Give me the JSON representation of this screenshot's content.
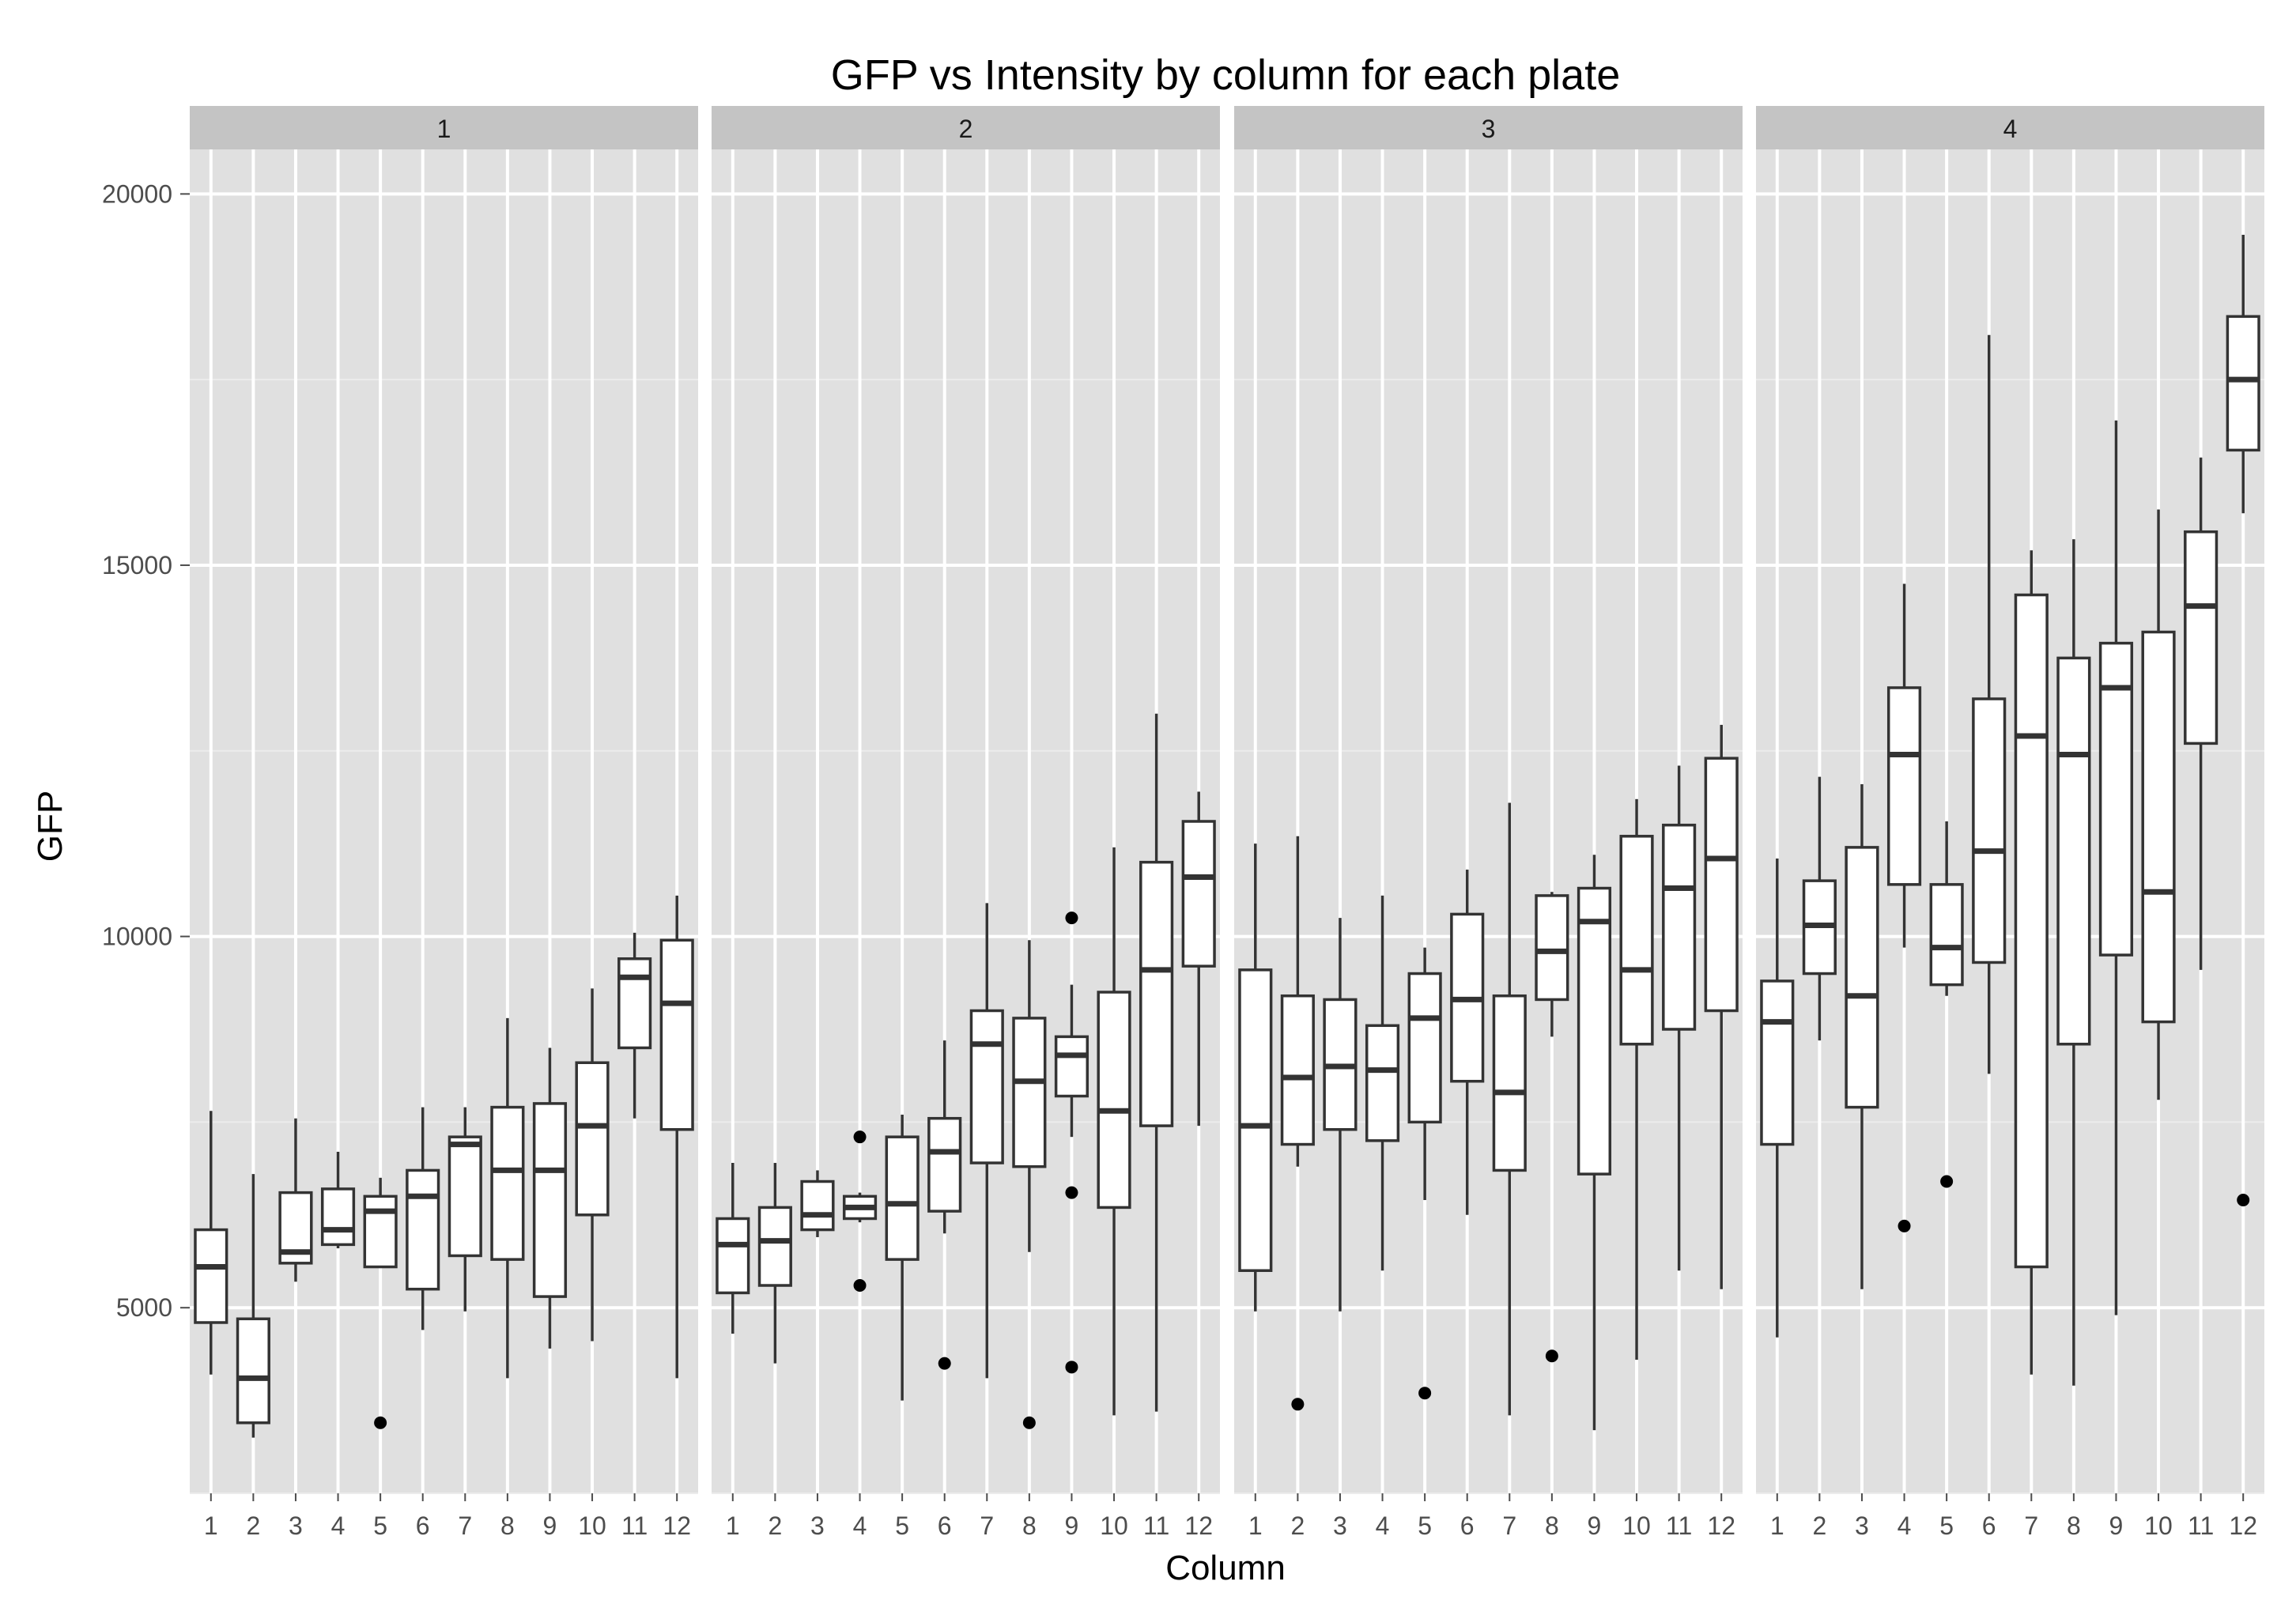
{
  "chart_data": {
    "type": "boxplot",
    "title": "GFP vs Intensity by column for each plate",
    "xlabel": "Column",
    "ylabel": "GFP",
    "ylim": [
      2500,
      20600
    ],
    "yticks": [
      5000,
      10000,
      15000,
      20000
    ],
    "categories": [
      "1",
      "2",
      "3",
      "4",
      "5",
      "6",
      "7",
      "8",
      "9",
      "10",
      "11",
      "12"
    ],
    "grid": true,
    "legend": "none",
    "colors": {
      "panel_bg": "#e0e0e0",
      "strip_bg": "#c4c4c4",
      "grid_major": "#ffffff",
      "grid_minor": "#ececec",
      "box_fill": "#ffffff",
      "box_line": "#333333"
    },
    "panels": [
      {
        "label": "1",
        "boxes": [
          {
            "q1": 4800,
            "median": 5550,
            "q3": 6050,
            "lower": 4100,
            "upper": 7650,
            "outliers": []
          },
          {
            "q1": 3450,
            "median": 4050,
            "q3": 4850,
            "lower": 3250,
            "upper": 6800,
            "outliers": []
          },
          {
            "q1": 5600,
            "median": 5750,
            "q3": 6550,
            "lower": 5350,
            "upper": 7550,
            "outliers": []
          },
          {
            "q1": 5850,
            "median": 6050,
            "q3": 6600,
            "lower": 5800,
            "upper": 7100,
            "outliers": []
          },
          {
            "q1": 5550,
            "median": 6300,
            "q3": 6500,
            "lower": 5550,
            "upper": 6750,
            "outliers": [
              3450
            ]
          },
          {
            "q1": 5250,
            "median": 6500,
            "q3": 6850,
            "lower": 4700,
            "upper": 7700,
            "outliers": []
          },
          {
            "q1": 5700,
            "median": 7200,
            "q3": 7300,
            "lower": 4950,
            "upper": 7700,
            "outliers": []
          },
          {
            "q1": 5650,
            "median": 6850,
            "q3": 7700,
            "lower": 4050,
            "upper": 8900,
            "outliers": []
          },
          {
            "q1": 5150,
            "median": 6850,
            "q3": 7750,
            "lower": 4450,
            "upper": 8500,
            "outliers": []
          },
          {
            "q1": 6250,
            "median": 7450,
            "q3": 8300,
            "lower": 4550,
            "upper": 9300,
            "outliers": []
          },
          {
            "q1": 8500,
            "median": 9450,
            "q3": 9700,
            "lower": 7550,
            "upper": 10050,
            "outliers": []
          },
          {
            "q1": 7400,
            "median": 9100,
            "q3": 9950,
            "lower": 4050,
            "upper": 10550,
            "outliers": []
          }
        ]
      },
      {
        "label": "2",
        "boxes": [
          {
            "q1": 5200,
            "median": 5850,
            "q3": 6200,
            "lower": 4650,
            "upper": 6950,
            "outliers": []
          },
          {
            "q1": 5300,
            "median": 5900,
            "q3": 6350,
            "lower": 4250,
            "upper": 6950,
            "outliers": []
          },
          {
            "q1": 6050,
            "median": 6250,
            "q3": 6700,
            "lower": 5950,
            "upper": 6850,
            "outliers": []
          },
          {
            "q1": 6200,
            "median": 6350,
            "q3": 6500,
            "lower": 6150,
            "upper": 6550,
            "outliers": [
              7300,
              5300
            ]
          },
          {
            "q1": 5650,
            "median": 6400,
            "q3": 7300,
            "lower": 3750,
            "upper": 7600,
            "outliers": []
          },
          {
            "q1": 6300,
            "median": 7100,
            "q3": 7550,
            "lower": 6000,
            "upper": 8600,
            "outliers": [
              4250
            ]
          },
          {
            "q1": 6950,
            "median": 8550,
            "q3": 9000,
            "lower": 4050,
            "upper": 10450,
            "outliers": []
          },
          {
            "q1": 6900,
            "median": 8050,
            "q3": 8900,
            "lower": 5750,
            "upper": 9950,
            "outliers": [
              3450
            ]
          },
          {
            "q1": 7850,
            "median": 8400,
            "q3": 8650,
            "lower": 7300,
            "upper": 9350,
            "outliers": [
              10250,
              6550,
              4200
            ]
          },
          {
            "q1": 6350,
            "median": 7650,
            "q3": 9250,
            "lower": 3550,
            "upper": 11200,
            "outliers": []
          },
          {
            "q1": 7450,
            "median": 9550,
            "q3": 11000,
            "lower": 3600,
            "upper": 13000,
            "outliers": []
          },
          {
            "q1": 9600,
            "median": 10800,
            "q3": 11550,
            "lower": 7450,
            "upper": 11950,
            "outliers": []
          }
        ]
      },
      {
        "label": "3",
        "boxes": [
          {
            "q1": 5500,
            "median": 7450,
            "q3": 9550,
            "lower": 4950,
            "upper": 11250,
            "outliers": []
          },
          {
            "q1": 7200,
            "median": 8100,
            "q3": 9200,
            "lower": 6900,
            "upper": 11350,
            "outliers": [
              3700
            ]
          },
          {
            "q1": 7400,
            "median": 8250,
            "q3": 9150,
            "lower": 4950,
            "upper": 10250,
            "outliers": []
          },
          {
            "q1": 7250,
            "median": 8200,
            "q3": 8800,
            "lower": 5500,
            "upper": 10550,
            "outliers": []
          },
          {
            "q1": 7500,
            "median": 8900,
            "q3": 9500,
            "lower": 6450,
            "upper": 9850,
            "outliers": [
              3850
            ]
          },
          {
            "q1": 8050,
            "median": 9150,
            "q3": 10300,
            "lower": 6250,
            "upper": 10900,
            "outliers": []
          },
          {
            "q1": 6850,
            "median": 7900,
            "q3": 9200,
            "lower": 3550,
            "upper": 11800,
            "outliers": []
          },
          {
            "q1": 9150,
            "median": 9800,
            "q3": 10550,
            "lower": 8650,
            "upper": 10600,
            "outliers": [
              4350
            ]
          },
          {
            "q1": 6800,
            "median": 10200,
            "q3": 10650,
            "lower": 3350,
            "upper": 11100,
            "outliers": []
          },
          {
            "q1": 8550,
            "median": 9550,
            "q3": 11350,
            "lower": 4300,
            "upper": 11850,
            "outliers": []
          },
          {
            "q1": 8750,
            "median": 10650,
            "q3": 11500,
            "lower": 5500,
            "upper": 12300,
            "outliers": []
          },
          {
            "q1": 9000,
            "median": 11050,
            "q3": 12400,
            "lower": 5250,
            "upper": 12850,
            "outliers": []
          }
        ]
      },
      {
        "label": "4",
        "boxes": [
          {
            "q1": 7200,
            "median": 8850,
            "q3": 9400,
            "lower": 4600,
            "upper": 11050,
            "outliers": []
          },
          {
            "q1": 9500,
            "median": 10150,
            "q3": 10750,
            "lower": 8600,
            "upper": 12150,
            "outliers": []
          },
          {
            "q1": 7700,
            "median": 9200,
            "q3": 11200,
            "lower": 5250,
            "upper": 12050,
            "outliers": []
          },
          {
            "q1": 10700,
            "median": 12450,
            "q3": 13350,
            "lower": 9850,
            "upper": 14750,
            "outliers": [
              6100
            ]
          },
          {
            "q1": 9350,
            "median": 9850,
            "q3": 10700,
            "lower": 9200,
            "upper": 11550,
            "outliers": [
              6700
            ]
          },
          {
            "q1": 9650,
            "median": 11150,
            "q3": 13200,
            "lower": 8150,
            "upper": 18100,
            "outliers": []
          },
          {
            "q1": 5550,
            "median": 12700,
            "q3": 14600,
            "lower": 4100,
            "upper": 15200,
            "outliers": []
          },
          {
            "q1": 8550,
            "median": 12450,
            "q3": 13750,
            "lower": 3950,
            "upper": 15350,
            "outliers": []
          },
          {
            "q1": 9750,
            "median": 13350,
            "q3": 13950,
            "lower": 4900,
            "upper": 16950,
            "outliers": []
          },
          {
            "q1": 8850,
            "median": 10600,
            "q3": 14100,
            "lower": 7800,
            "upper": 15750,
            "outliers": []
          },
          {
            "q1": 12600,
            "median": 14450,
            "q3": 15450,
            "lower": 9550,
            "upper": 16450,
            "outliers": []
          },
          {
            "q1": 16550,
            "median": 17500,
            "q3": 18350,
            "lower": 15700,
            "upper": 19450,
            "outliers": [
              6450
            ]
          }
        ]
      }
    ]
  }
}
